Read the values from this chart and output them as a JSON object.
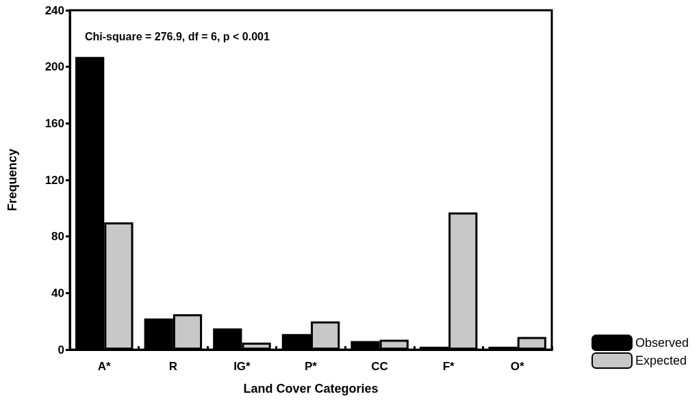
{
  "chart_data": {
    "type": "bar",
    "xlabel": "Land Cover Categories",
    "ylabel": "Frequency",
    "annotations": [
      "Chi-square = 276.9, df = 6, p < 0.001"
    ],
    "categories": [
      "A*",
      "R",
      "IG*",
      "P*",
      "CC",
      "F*",
      "O*"
    ],
    "series": [
      {
        "name": "Observed",
        "color": "#000000",
        "values": [
          207,
          22,
          15,
          11,
          6,
          2,
          2
        ]
      },
      {
        "name": "Expected",
        "color": "#c8c8c8",
        "values": [
          90,
          25,
          5,
          20,
          7,
          97,
          9
        ]
      }
    ],
    "ylim": [
      0,
      240
    ],
    "yticks": [
      0,
      40,
      80,
      120,
      160,
      200,
      240
    ],
    "grid": false,
    "legend": "bottom right"
  }
}
